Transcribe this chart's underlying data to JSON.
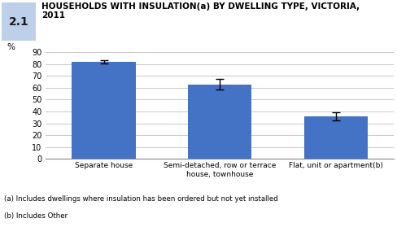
{
  "categories": [
    "Separate house",
    "Semi-detached, row or terrace\nhouse, townhouse",
    "Flat, unit or apartment(b)"
  ],
  "values": [
    82,
    63,
    36
  ],
  "errors": [
    1.5,
    4.5,
    3.5
  ],
  "bar_color": "#4472C4",
  "ylabel": "%",
  "ylim": [
    0,
    90
  ],
  "yticks": [
    0,
    10,
    20,
    30,
    40,
    50,
    60,
    70,
    80,
    90
  ],
  "title": "HOUSEHOLDS WITH INSULATION(a) BY DWELLING TYPE, VICTORIA,\n2011",
  "figure_label": "2.1",
  "figure_label_bg": "#BDD0E9",
  "footnote1": "(a) Includes dwellings where insulation has been ordered but not yet installed",
  "footnote2": "(b) Includes Other",
  "grid_color": "#C0C0C0",
  "background_color": "#FFFFFF"
}
